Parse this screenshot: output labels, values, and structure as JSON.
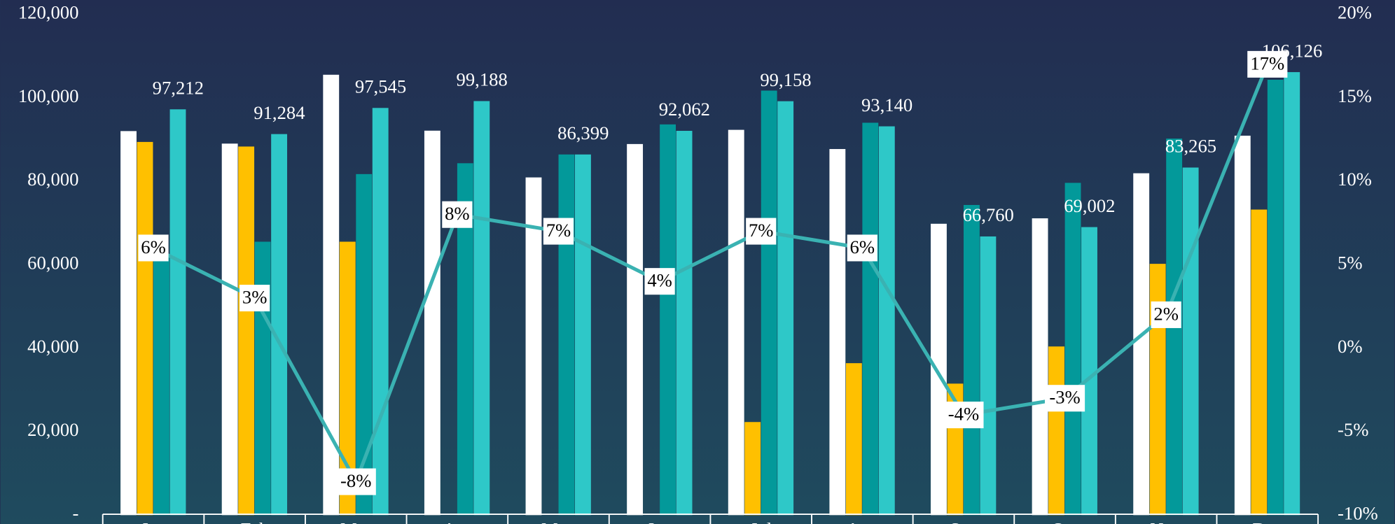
{
  "chart_data": {
    "type": "bar",
    "categories": [
      "Jan",
      "Feb",
      "Mar",
      "Apr",
      "May",
      "Jun",
      "Jul",
      "Aug",
      "Sep",
      "Oct",
      "Nov",
      "Dec"
    ],
    "series": [
      {
        "color": "#ffffff",
        "values": [
          92000,
          89000,
          105500,
          92100,
          80900,
          88900,
          92300,
          87700,
          69800,
          71100,
          81900,
          90900
        ]
      },
      {
        "color": "#ffc000",
        "values": [
          89400,
          88300,
          65500,
          null,
          null,
          null,
          22300,
          36400,
          31500,
          40400,
          60200,
          73200
        ]
      },
      {
        "color": "#03999a",
        "values": [
          62000,
          65500,
          81700,
          84300,
          86400,
          93600,
          101700,
          94000,
          74300,
          79600,
          90200,
          104300
        ]
      },
      {
        "color": "#2ec8c8",
        "values": [
          97212,
          91284,
          97545,
          99188,
          86399,
          92062,
          99158,
          93140,
          66760,
          69002,
          83265,
          106126
        ],
        "value_labels": [
          "97,212",
          "91,284",
          "97,545",
          "99,188",
          "86,399",
          "92,062",
          "99,158",
          "93,140",
          "66,760",
          "69,002",
          "83,265",
          "106,126"
        ]
      },
      {
        "type": "line",
        "axis": "y2",
        "color": "#3ab2b2",
        "values": [
          6,
          3,
          -8,
          8,
          7,
          4,
          7,
          6,
          -4,
          -3,
          2,
          17
        ],
        "value_labels": [
          "6%",
          "3%",
          "-8%",
          "8%",
          "7%",
          "4%",
          "7%",
          "6%",
          "-4%",
          "-3%",
          "2%",
          "17%"
        ]
      }
    ],
    "ylim": [
      0,
      120000
    ],
    "yticks": [
      {
        "value": 0,
        "label": "-"
      },
      {
        "value": 20000,
        "label": "20,000"
      },
      {
        "value": 40000,
        "label": "40,000"
      },
      {
        "value": 60000,
        "label": "60,000"
      },
      {
        "value": 80000,
        "label": "80,000"
      },
      {
        "value": 100000,
        "label": "100,000"
      },
      {
        "value": 120000,
        "label": "120,000"
      }
    ],
    "y2lim": [
      -10,
      20
    ],
    "y2ticks": [
      {
        "value": -10,
        "label": "-10%"
      },
      {
        "value": -5,
        "label": "-5%"
      },
      {
        "value": 0,
        "label": "0%"
      },
      {
        "value": 5,
        "label": "5%"
      },
      {
        "value": 10,
        "label": "10%"
      },
      {
        "value": 15,
        "label": "15%"
      },
      {
        "value": 20,
        "label": "20%"
      }
    ]
  }
}
